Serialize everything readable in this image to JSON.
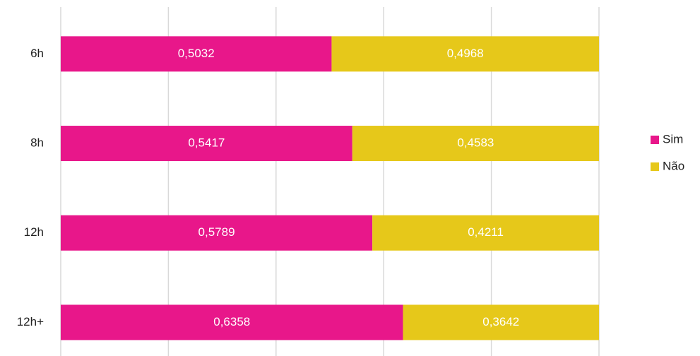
{
  "chart_data": {
    "type": "stacked-barh",
    "categories": [
      "6h",
      "8h",
      "12h",
      "12h+"
    ],
    "series": [
      {
        "name": "Sim",
        "color": "#e8178a",
        "values": [
          0.5032,
          0.5417,
          0.5789,
          0.6358
        ],
        "value_labels": [
          "0,5032",
          "0,5417",
          "0,5789",
          "0,6358"
        ]
      },
      {
        "name": "Não",
        "color": "#e6c81a",
        "values": [
          0.4968,
          0.4583,
          0.4211,
          0.3642
        ],
        "value_labels": [
          "0,4968",
          "0,4583",
          "0,4211",
          "0,3642"
        ]
      }
    ],
    "xlim": [
      0,
      1
    ],
    "xticks": [
      0,
      0.2,
      0.4,
      0.6,
      0.8,
      1
    ],
    "grid": true,
    "legend": "right"
  }
}
